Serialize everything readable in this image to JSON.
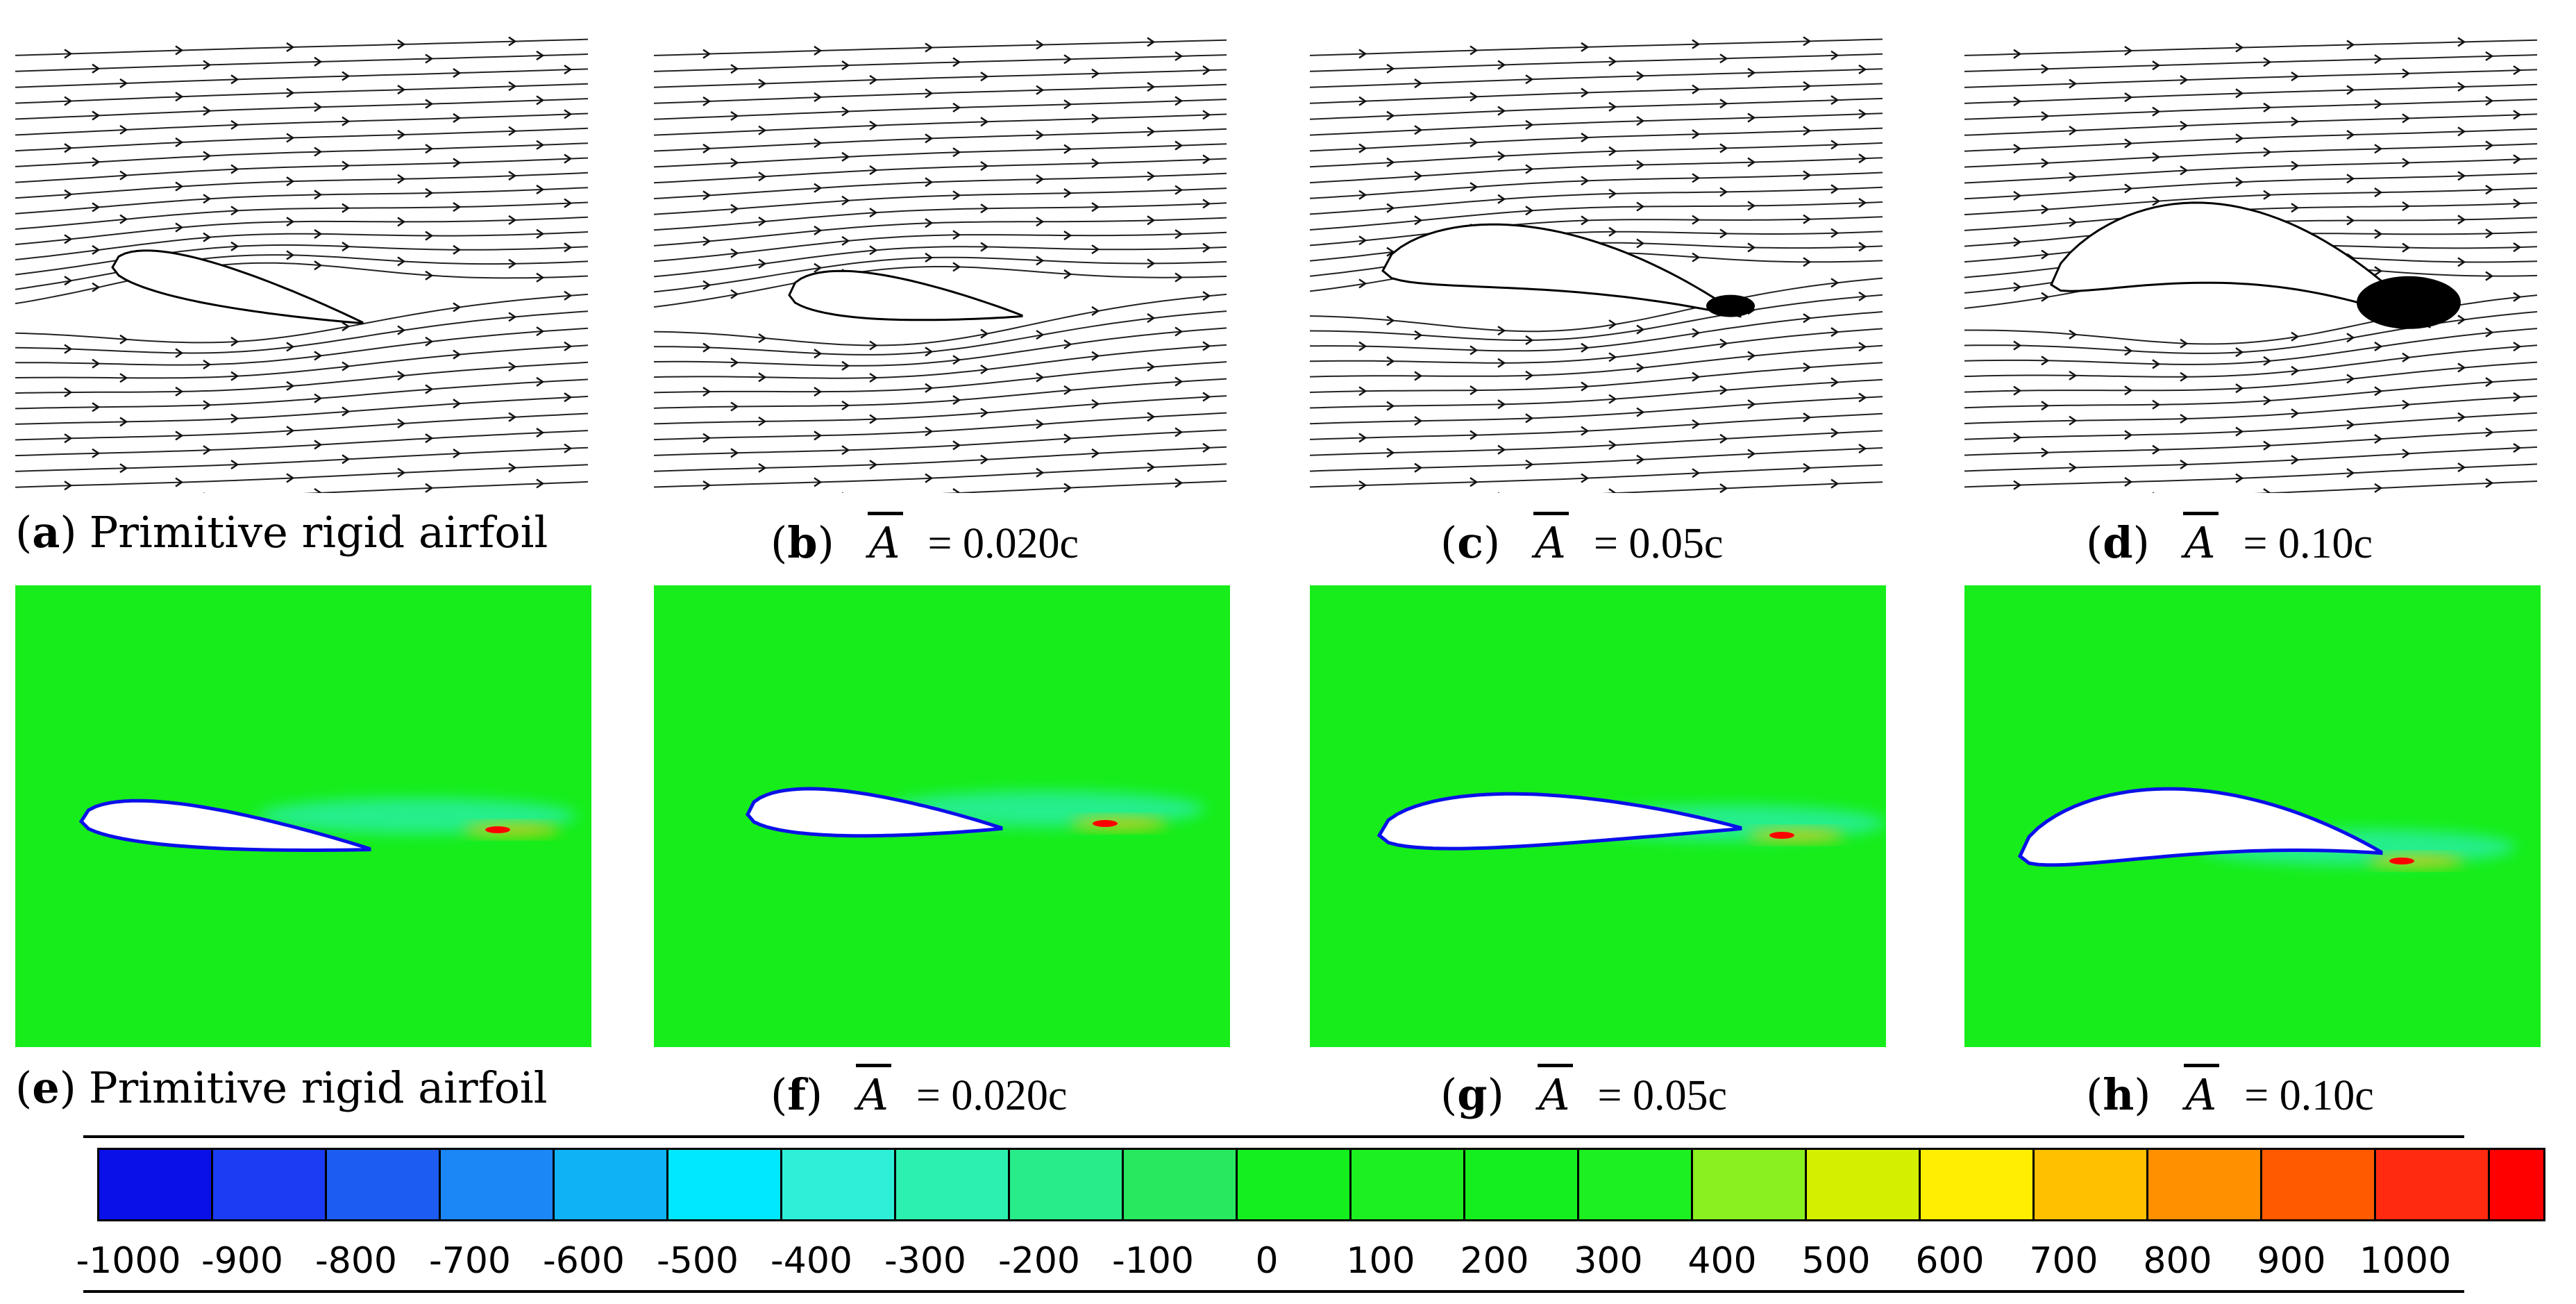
{
  "figure": {
    "top_row": {
      "kind": "streamlines",
      "panels": [
        {
          "letter": "a",
          "label": "Primitive rigid airfoil"
        },
        {
          "letter": "b",
          "symbol": "A",
          "value": "= 0.020c"
        },
        {
          "letter": "c",
          "symbol": "A",
          "value": "= 0.05c"
        },
        {
          "letter": "d",
          "symbol": "A",
          "value": "= 0.10c"
        }
      ]
    },
    "bottom_row": {
      "kind": "contour",
      "panels": [
        {
          "letter": "e",
          "label": "Primitive rigid airfoil"
        },
        {
          "letter": "f",
          "symbol": "A",
          "value": "= 0.020c"
        },
        {
          "letter": "g",
          "symbol": "A",
          "value": "= 0.05c"
        },
        {
          "letter": "h",
          "symbol": "A",
          "value": "= 0.10c"
        }
      ]
    },
    "colorbar": {
      "colors": [
        "#0a10e8",
        "#1a3cf2",
        "#1c5cf0",
        "#1b86f5",
        "#10b2f6",
        "#00e8ff",
        "#2ef0d8",
        "#2bf0b0",
        "#28ec8a",
        "#28e860",
        "#14f01e",
        "#1cf020",
        "#14f01e",
        "#1cf020",
        "#8af020",
        "#d4f000",
        "#ffee00",
        "#ffc000",
        "#ff9000",
        "#ff5a00",
        "#ff2a10",
        "#ff0000"
      ],
      "tick_labels": [
        "-1000",
        "-900",
        "-800",
        "-700",
        "-600",
        "-500",
        "-400",
        "-300",
        "-200",
        "-100",
        "0",
        "100",
        "200",
        "300",
        "400",
        "500",
        "600",
        "700",
        "800",
        "900",
        "1000"
      ],
      "field_color": "#17ed1a"
    }
  }
}
